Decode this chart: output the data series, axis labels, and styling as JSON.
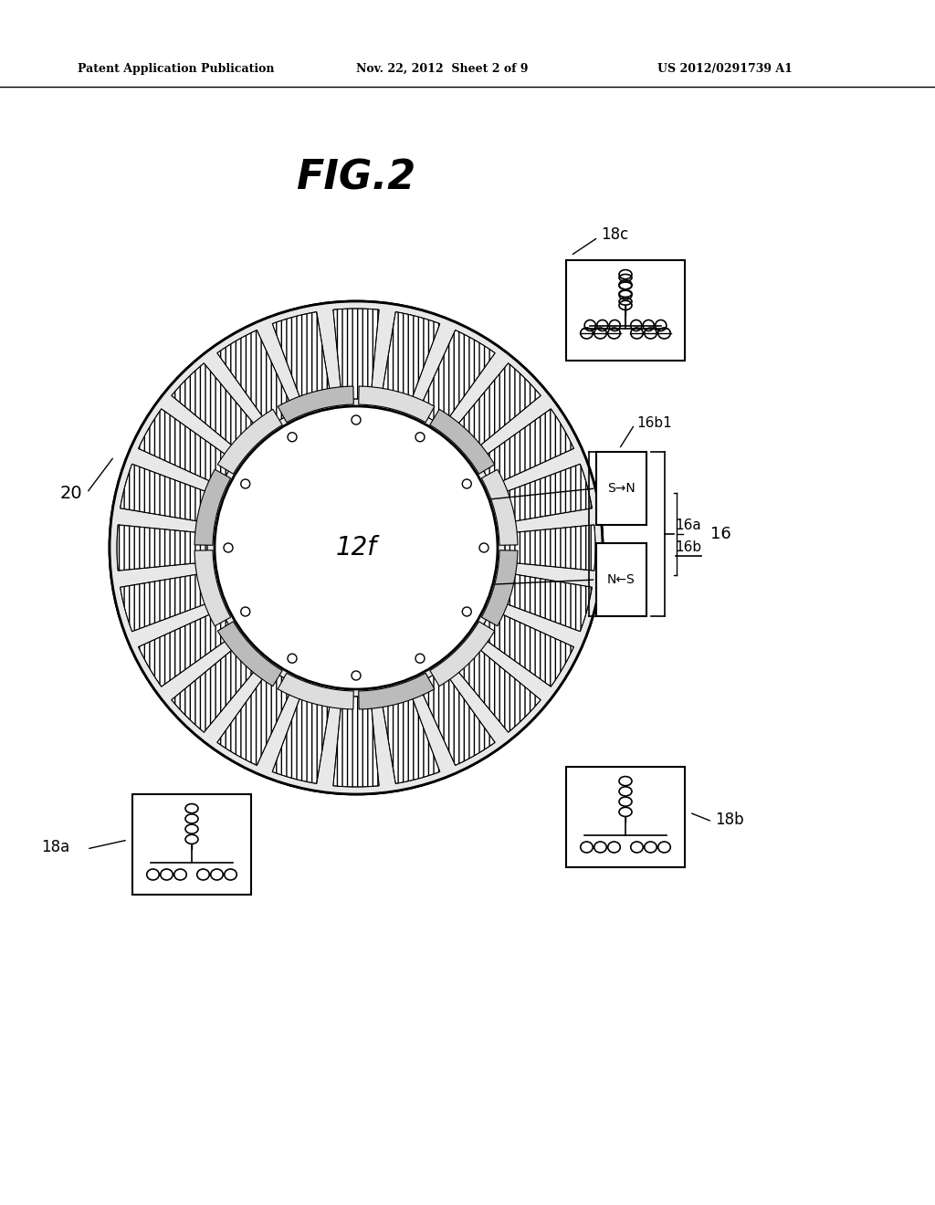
{
  "bg_color": "#ffffff",
  "header_left": "Patent Application Publication",
  "header_mid": "Nov. 22, 2012  Sheet 2 of 9",
  "header_right": "US 2012/0291739 A1",
  "figure_label": "FIG.2",
  "label_20": "20",
  "label_12f": "12f",
  "label_18c": "18c",
  "label_18a": "18a",
  "label_18b": "18b",
  "label_16b1": "16b1",
  "label_16a": "16a",
  "label_16b": "16b",
  "label_16": "16",
  "label_SN": "S→N",
  "label_NS": "N←S"
}
